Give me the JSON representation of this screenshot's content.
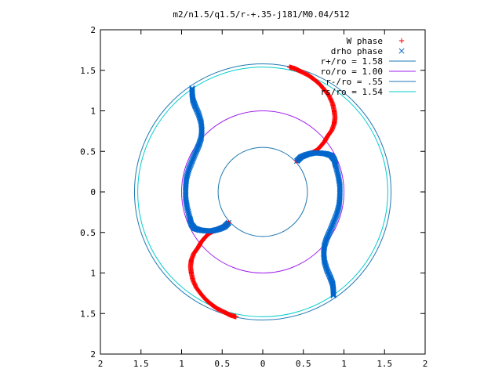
{
  "chart_data": {
    "type": "scatter",
    "title": "m2/n1.5/q1.5/r-+.35-j181/M0.04/512",
    "xlabel": "",
    "ylabel": "",
    "xlim": [
      -2,
      2
    ],
    "ylim": [
      -2,
      2
    ],
    "x_tick_values": [
      -2,
      -1.5,
      -1,
      -0.5,
      0,
      0.5,
      1,
      1.5,
      2
    ],
    "x_tick_labels": [
      "2",
      "1.5",
      "1",
      "0.5",
      "0",
      "0.5",
      "1",
      "1.5",
      "2"
    ],
    "y_tick_values": [
      2,
      1.5,
      1,
      0.5,
      0,
      -0.5,
      -1,
      -1.5,
      -2
    ],
    "y_tick_labels": [
      "2",
      "1.5",
      "1",
      "0.5",
      "0",
      "0.5",
      "1",
      "1.5",
      "2"
    ],
    "grid": false,
    "legend_position": "top-right",
    "series": [
      {
        "name": "W phase",
        "marker": "+",
        "color": "#ff0000",
        "arms": [
          {
            "x": [
              0.33,
              0.4,
              0.48,
              0.56,
              0.63,
              0.7,
              0.76,
              0.82,
              0.86,
              0.88,
              0.89,
              0.88,
              0.85,
              0.8,
              0.76,
              0.71,
              0.66,
              0.6,
              0.53,
              0.46,
              0.42
            ],
            "y": [
              1.54,
              1.52,
              1.48,
              1.44,
              1.39,
              1.33,
              1.26,
              1.18,
              1.09,
              1.0,
              0.92,
              0.84,
              0.76,
              0.69,
              0.62,
              0.56,
              0.51,
              0.48,
              0.45,
              0.42,
              0.38
            ]
          },
          {
            "x": [
              -0.42,
              -0.46,
              -0.53,
              -0.6,
              -0.66,
              -0.71,
              -0.76,
              -0.8,
              -0.85,
              -0.88,
              -0.89,
              -0.88,
              -0.86,
              -0.82,
              -0.76,
              -0.7,
              -0.63,
              -0.56,
              -0.48,
              -0.4,
              -0.33
            ],
            "y": [
              -0.38,
              -0.42,
              -0.45,
              -0.48,
              -0.51,
              -0.56,
              -0.62,
              -0.69,
              -0.76,
              -0.84,
              -0.92,
              -1.0,
              -1.09,
              -1.18,
              -1.26,
              -1.33,
              -1.39,
              -1.44,
              -1.48,
              -1.52,
              -1.54
            ]
          }
        ]
      },
      {
        "name": "drho phase",
        "marker": "x",
        "color": "#0066cc",
        "arms": [
          {
            "x": [
              0.42,
              0.47,
              0.54,
              0.62,
              0.7,
              0.78,
              0.84,
              0.88,
              0.9,
              0.93,
              0.95,
              0.95,
              0.94,
              0.91,
              0.87,
              0.83,
              0.79,
              0.76,
              0.75,
              0.76,
              0.79,
              0.83,
              0.86,
              0.87,
              0.87
            ],
            "y": [
              0.38,
              0.43,
              0.46,
              0.48,
              0.48,
              0.47,
              0.45,
              0.4,
              0.32,
              0.2,
              0.08,
              -0.05,
              -0.17,
              -0.28,
              -0.38,
              -0.48,
              -0.57,
              -0.66,
              -0.76,
              -0.86,
              -0.96,
              -1.05,
              -1.13,
              -1.21,
              -1.28
            ]
          },
          {
            "x": [
              -0.42,
              -0.47,
              -0.54,
              -0.62,
              -0.7,
              -0.78,
              -0.84,
              -0.88,
              -0.9,
              -0.93,
              -0.95,
              -0.95,
              -0.94,
              -0.91,
              -0.87,
              -0.83,
              -0.79,
              -0.76,
              -0.75,
              -0.76,
              -0.79,
              -0.83,
              -0.86,
              -0.87,
              -0.87
            ],
            "y": [
              -0.38,
              -0.43,
              -0.46,
              -0.48,
              -0.48,
              -0.47,
              -0.45,
              -0.4,
              -0.32,
              -0.2,
              -0.08,
              0.05,
              0.17,
              0.28,
              0.38,
              0.48,
              0.57,
              0.66,
              0.76,
              0.86,
              0.96,
              1.05,
              1.13,
              1.21,
              1.28
            ]
          }
        ]
      }
    ],
    "circles": [
      {
        "name": "r+/ro = 1.58",
        "radius": 1.58,
        "color": "#1e78b4"
      },
      {
        "name": "ro/ro = 1.00",
        "radius": 1.0,
        "color": "#a020f0"
      },
      {
        "name": "r-/ro = .55",
        "radius": 0.55,
        "color": "#1e78b4"
      },
      {
        "name": "rs/ro = 1.54",
        "radius": 1.54,
        "color": "#00cccc"
      }
    ]
  }
}
